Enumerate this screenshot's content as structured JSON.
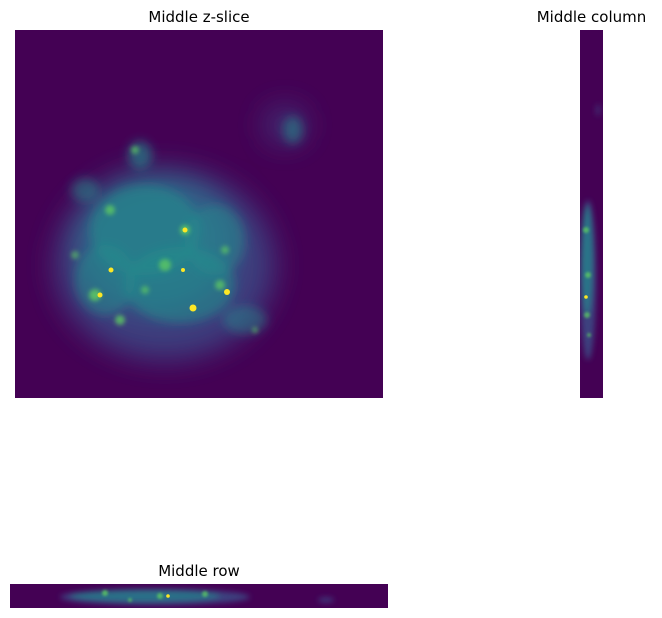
{
  "figure": {
    "panels": [
      {
        "id": "z",
        "title": "Middle z-slice"
      },
      {
        "id": "col",
        "title": "Middle column"
      },
      {
        "id": "row",
        "title": "Middle row"
      }
    ],
    "colormap": "viridis",
    "colors": {
      "background": "#440154",
      "low": "#3b528b",
      "mid": "#21908d",
      "high": "#5dc863",
      "peak": "#fde725"
    }
  }
}
